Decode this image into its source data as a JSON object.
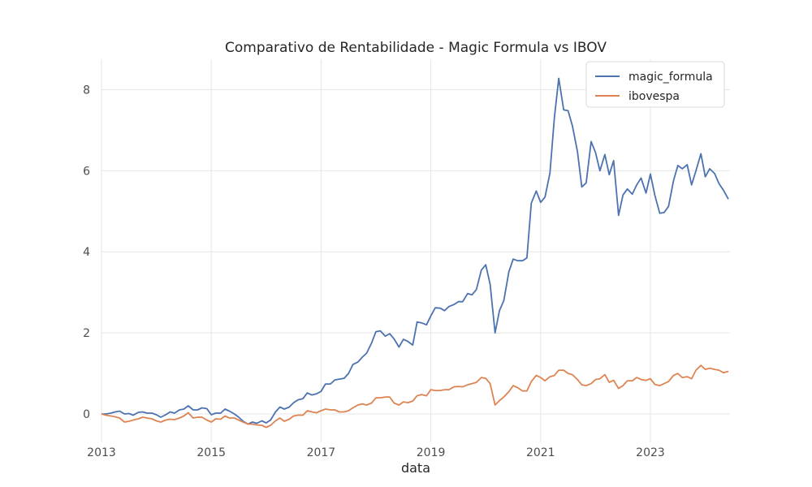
{
  "chart_data": {
    "type": "line",
    "title": "Comparativo de Rentabilidade - Magic Formula vs IBOV",
    "xlabel": "data",
    "ylabel": "",
    "xlim": [
      2013.0,
      2024.45
    ],
    "ylim": [
      -0.7,
      8.75
    ],
    "x_ticks": [
      2013,
      2015,
      2017,
      2019,
      2021,
      2023
    ],
    "x_tick_labels": [
      "2013",
      "2015",
      "2017",
      "2019",
      "2021",
      "2023"
    ],
    "y_ticks": [
      0,
      2,
      4,
      6,
      8
    ],
    "y_tick_labels": [
      "0",
      "2",
      "4",
      "6",
      "8"
    ],
    "grid": true,
    "legend": "top-right",
    "series": [
      {
        "name": "magic_formula",
        "color": "#4c72b0",
        "points": [
          [
            2013.0,
            0.0
          ],
          [
            2013.08,
            0.0
          ],
          [
            2013.17,
            0.02
          ],
          [
            2013.25,
            0.05
          ],
          [
            2013.33,
            0.07
          ],
          [
            2013.42,
            0.0
          ],
          [
            2013.5,
            0.01
          ],
          [
            2013.58,
            -0.03
          ],
          [
            2013.67,
            0.04
          ],
          [
            2013.75,
            0.05
          ],
          [
            2013.83,
            0.02
          ],
          [
            2013.92,
            0.02
          ],
          [
            2014.0,
            -0.02
          ],
          [
            2014.08,
            -0.08
          ],
          [
            2014.17,
            -0.02
          ],
          [
            2014.25,
            0.05
          ],
          [
            2014.33,
            0.02
          ],
          [
            2014.42,
            0.1
          ],
          [
            2014.5,
            0.12
          ],
          [
            2014.58,
            0.2
          ],
          [
            2014.67,
            0.1
          ],
          [
            2014.75,
            0.1
          ],
          [
            2014.83,
            0.15
          ],
          [
            2014.92,
            0.13
          ],
          [
            2015.0,
            -0.02
          ],
          [
            2015.08,
            0.02
          ],
          [
            2015.17,
            0.02
          ],
          [
            2015.25,
            0.12
          ],
          [
            2015.33,
            0.07
          ],
          [
            2015.42,
            0.0
          ],
          [
            2015.5,
            -0.08
          ],
          [
            2015.58,
            -0.18
          ],
          [
            2015.67,
            -0.25
          ],
          [
            2015.75,
            -0.2
          ],
          [
            2015.83,
            -0.23
          ],
          [
            2015.92,
            -0.17
          ],
          [
            2016.0,
            -0.22
          ],
          [
            2016.08,
            -0.15
          ],
          [
            2016.17,
            0.05
          ],
          [
            2016.25,
            0.17
          ],
          [
            2016.33,
            0.12
          ],
          [
            2016.42,
            0.17
          ],
          [
            2016.5,
            0.28
          ],
          [
            2016.58,
            0.35
          ],
          [
            2016.67,
            0.38
          ],
          [
            2016.75,
            0.52
          ],
          [
            2016.83,
            0.47
          ],
          [
            2016.92,
            0.5
          ],
          [
            2017.0,
            0.56
          ],
          [
            2017.08,
            0.74
          ],
          [
            2017.17,
            0.74
          ],
          [
            2017.25,
            0.84
          ],
          [
            2017.33,
            0.86
          ],
          [
            2017.42,
            0.88
          ],
          [
            2017.5,
            1.0
          ],
          [
            2017.58,
            1.22
          ],
          [
            2017.67,
            1.28
          ],
          [
            2017.75,
            1.4
          ],
          [
            2017.83,
            1.5
          ],
          [
            2017.92,
            1.75
          ],
          [
            2018.0,
            2.03
          ],
          [
            2018.08,
            2.05
          ],
          [
            2018.17,
            1.92
          ],
          [
            2018.25,
            1.98
          ],
          [
            2018.33,
            1.85
          ],
          [
            2018.42,
            1.65
          ],
          [
            2018.5,
            1.84
          ],
          [
            2018.58,
            1.79
          ],
          [
            2018.67,
            1.7
          ],
          [
            2018.75,
            2.27
          ],
          [
            2018.83,
            2.25
          ],
          [
            2018.92,
            2.2
          ],
          [
            2019.0,
            2.42
          ],
          [
            2019.08,
            2.62
          ],
          [
            2019.17,
            2.61
          ],
          [
            2019.25,
            2.55
          ],
          [
            2019.33,
            2.65
          ],
          [
            2019.42,
            2.7
          ],
          [
            2019.5,
            2.77
          ],
          [
            2019.58,
            2.77
          ],
          [
            2019.67,
            2.97
          ],
          [
            2019.75,
            2.94
          ],
          [
            2019.83,
            3.07
          ],
          [
            2019.92,
            3.55
          ],
          [
            2020.0,
            3.68
          ],
          [
            2020.08,
            3.2
          ],
          [
            2020.17,
            2.0
          ],
          [
            2020.25,
            2.55
          ],
          [
            2020.33,
            2.8
          ],
          [
            2020.42,
            3.5
          ],
          [
            2020.5,
            3.82
          ],
          [
            2020.58,
            3.78
          ],
          [
            2020.67,
            3.78
          ],
          [
            2020.75,
            3.85
          ],
          [
            2020.83,
            5.2
          ],
          [
            2020.92,
            5.5
          ],
          [
            2021.0,
            5.22
          ],
          [
            2021.08,
            5.35
          ],
          [
            2021.17,
            5.95
          ],
          [
            2021.25,
            7.3
          ],
          [
            2021.33,
            8.28
          ],
          [
            2021.42,
            7.5
          ],
          [
            2021.5,
            7.48
          ],
          [
            2021.58,
            7.1
          ],
          [
            2021.67,
            6.48
          ],
          [
            2021.75,
            5.6
          ],
          [
            2021.83,
            5.7
          ],
          [
            2021.92,
            6.72
          ],
          [
            2022.0,
            6.45
          ],
          [
            2022.08,
            6.0
          ],
          [
            2022.17,
            6.4
          ],
          [
            2022.25,
            5.9
          ],
          [
            2022.33,
            6.25
          ],
          [
            2022.42,
            4.9
          ],
          [
            2022.5,
            5.4
          ],
          [
            2022.58,
            5.55
          ],
          [
            2022.67,
            5.42
          ],
          [
            2022.75,
            5.65
          ],
          [
            2022.83,
            5.82
          ],
          [
            2022.92,
            5.45
          ],
          [
            2023.0,
            5.92
          ],
          [
            2023.08,
            5.4
          ],
          [
            2023.17,
            4.95
          ],
          [
            2023.25,
            4.97
          ],
          [
            2023.33,
            5.12
          ],
          [
            2023.42,
            5.75
          ],
          [
            2023.5,
            6.13
          ],
          [
            2023.58,
            6.05
          ],
          [
            2023.67,
            6.15
          ],
          [
            2023.75,
            5.65
          ],
          [
            2023.83,
            6.0
          ],
          [
            2023.92,
            6.42
          ],
          [
            2024.0,
            5.85
          ],
          [
            2024.08,
            6.05
          ],
          [
            2024.17,
            5.93
          ],
          [
            2024.25,
            5.68
          ],
          [
            2024.33,
            5.52
          ],
          [
            2024.42,
            5.3
          ]
        ]
      },
      {
        "name": "ibovespa",
        "color": "#dd8452",
        "points": [
          [
            2013.0,
            0.0
          ],
          [
            2013.08,
            -0.03
          ],
          [
            2013.17,
            -0.05
          ],
          [
            2013.25,
            -0.07
          ],
          [
            2013.33,
            -0.1
          ],
          [
            2013.42,
            -0.2
          ],
          [
            2013.5,
            -0.18
          ],
          [
            2013.58,
            -0.15
          ],
          [
            2013.67,
            -0.12
          ],
          [
            2013.75,
            -0.08
          ],
          [
            2013.83,
            -0.1
          ],
          [
            2013.92,
            -0.12
          ],
          [
            2014.0,
            -0.17
          ],
          [
            2014.08,
            -0.2
          ],
          [
            2014.17,
            -0.15
          ],
          [
            2014.25,
            -0.13
          ],
          [
            2014.33,
            -0.14
          ],
          [
            2014.42,
            -0.1
          ],
          [
            2014.5,
            -0.05
          ],
          [
            2014.58,
            0.03
          ],
          [
            2014.67,
            -0.1
          ],
          [
            2014.75,
            -0.08
          ],
          [
            2014.83,
            -0.08
          ],
          [
            2014.92,
            -0.15
          ],
          [
            2015.0,
            -0.2
          ],
          [
            2015.08,
            -0.12
          ],
          [
            2015.17,
            -0.13
          ],
          [
            2015.25,
            -0.05
          ],
          [
            2015.33,
            -0.1
          ],
          [
            2015.42,
            -0.1
          ],
          [
            2015.5,
            -0.15
          ],
          [
            2015.58,
            -0.2
          ],
          [
            2015.67,
            -0.25
          ],
          [
            2015.75,
            -0.25
          ],
          [
            2015.83,
            -0.27
          ],
          [
            2015.92,
            -0.28
          ],
          [
            2016.0,
            -0.33
          ],
          [
            2016.08,
            -0.28
          ],
          [
            2016.17,
            -0.17
          ],
          [
            2016.25,
            -0.1
          ],
          [
            2016.33,
            -0.18
          ],
          [
            2016.42,
            -0.13
          ],
          [
            2016.5,
            -0.05
          ],
          [
            2016.58,
            -0.03
          ],
          [
            2016.67,
            -0.03
          ],
          [
            2016.75,
            0.08
          ],
          [
            2016.83,
            0.05
          ],
          [
            2016.92,
            0.03
          ],
          [
            2017.0,
            0.08
          ],
          [
            2017.08,
            0.12
          ],
          [
            2017.17,
            0.1
          ],
          [
            2017.25,
            0.1
          ],
          [
            2017.33,
            0.05
          ],
          [
            2017.42,
            0.05
          ],
          [
            2017.5,
            0.08
          ],
          [
            2017.58,
            0.15
          ],
          [
            2017.67,
            0.22
          ],
          [
            2017.75,
            0.25
          ],
          [
            2017.83,
            0.22
          ],
          [
            2017.92,
            0.27
          ],
          [
            2018.0,
            0.4
          ],
          [
            2018.08,
            0.4
          ],
          [
            2018.17,
            0.42
          ],
          [
            2018.25,
            0.42
          ],
          [
            2018.33,
            0.27
          ],
          [
            2018.42,
            0.22
          ],
          [
            2018.5,
            0.3
          ],
          [
            2018.58,
            0.28
          ],
          [
            2018.67,
            0.32
          ],
          [
            2018.75,
            0.45
          ],
          [
            2018.83,
            0.48
          ],
          [
            2018.92,
            0.45
          ],
          [
            2019.0,
            0.6
          ],
          [
            2019.08,
            0.58
          ],
          [
            2019.17,
            0.58
          ],
          [
            2019.25,
            0.6
          ],
          [
            2019.33,
            0.6
          ],
          [
            2019.42,
            0.67
          ],
          [
            2019.5,
            0.68
          ],
          [
            2019.58,
            0.67
          ],
          [
            2019.67,
            0.72
          ],
          [
            2019.75,
            0.75
          ],
          [
            2019.83,
            0.78
          ],
          [
            2019.92,
            0.9
          ],
          [
            2020.0,
            0.88
          ],
          [
            2020.08,
            0.75
          ],
          [
            2020.17,
            0.22
          ],
          [
            2020.25,
            0.33
          ],
          [
            2020.33,
            0.42
          ],
          [
            2020.42,
            0.55
          ],
          [
            2020.5,
            0.7
          ],
          [
            2020.58,
            0.65
          ],
          [
            2020.67,
            0.57
          ],
          [
            2020.75,
            0.57
          ],
          [
            2020.83,
            0.8
          ],
          [
            2020.92,
            0.95
          ],
          [
            2021.0,
            0.9
          ],
          [
            2021.08,
            0.82
          ],
          [
            2021.17,
            0.92
          ],
          [
            2021.25,
            0.95
          ],
          [
            2021.33,
            1.08
          ],
          [
            2021.42,
            1.08
          ],
          [
            2021.5,
            1.0
          ],
          [
            2021.58,
            0.97
          ],
          [
            2021.67,
            0.85
          ],
          [
            2021.75,
            0.72
          ],
          [
            2021.83,
            0.7
          ],
          [
            2021.92,
            0.75
          ],
          [
            2022.0,
            0.85
          ],
          [
            2022.08,
            0.87
          ],
          [
            2022.17,
            0.97
          ],
          [
            2022.25,
            0.78
          ],
          [
            2022.33,
            0.83
          ],
          [
            2022.42,
            0.63
          ],
          [
            2022.5,
            0.7
          ],
          [
            2022.58,
            0.82
          ],
          [
            2022.67,
            0.82
          ],
          [
            2022.75,
            0.9
          ],
          [
            2022.83,
            0.85
          ],
          [
            2022.92,
            0.83
          ],
          [
            2023.0,
            0.87
          ],
          [
            2023.08,
            0.73
          ],
          [
            2023.17,
            0.7
          ],
          [
            2023.25,
            0.75
          ],
          [
            2023.33,
            0.8
          ],
          [
            2023.42,
            0.95
          ],
          [
            2023.5,
            1.0
          ],
          [
            2023.58,
            0.9
          ],
          [
            2023.67,
            0.92
          ],
          [
            2023.75,
            0.87
          ],
          [
            2023.83,
            1.08
          ],
          [
            2023.92,
            1.2
          ],
          [
            2024.0,
            1.1
          ],
          [
            2024.08,
            1.13
          ],
          [
            2024.17,
            1.1
          ],
          [
            2024.25,
            1.08
          ],
          [
            2024.33,
            1.02
          ],
          [
            2024.42,
            1.05
          ]
        ]
      }
    ]
  }
}
